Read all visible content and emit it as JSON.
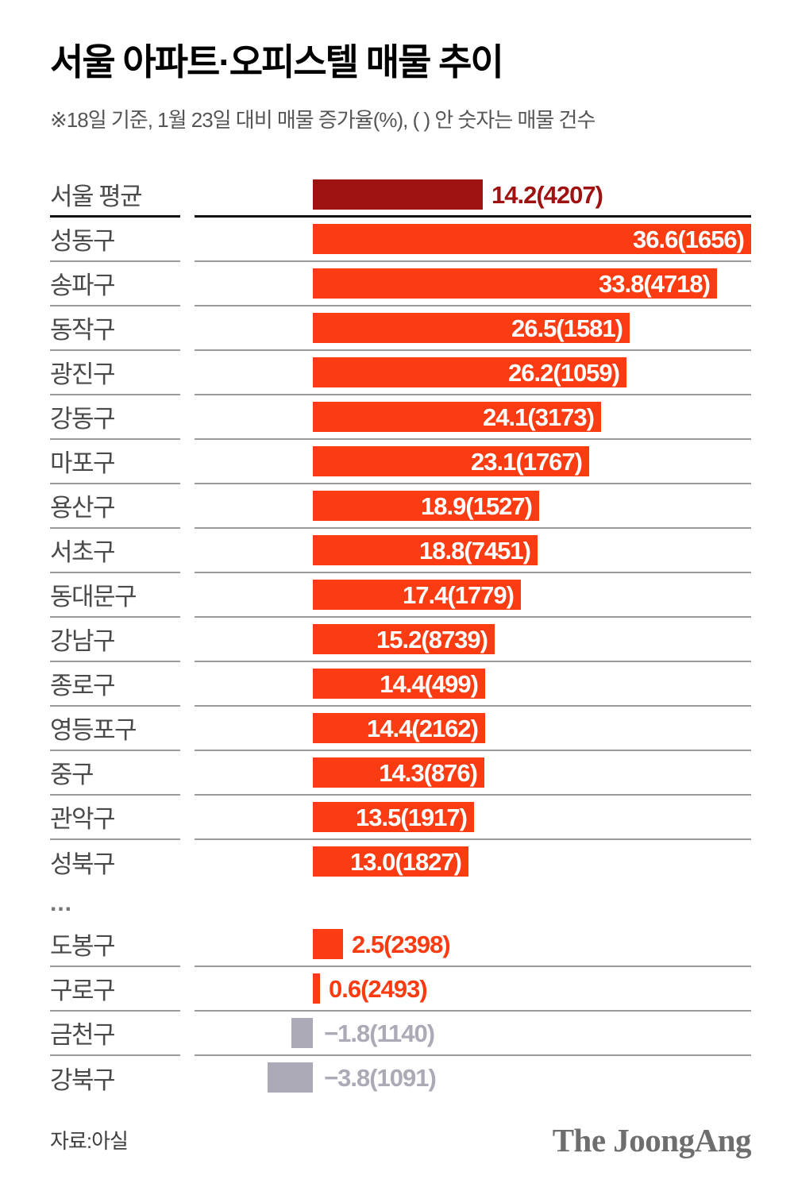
{
  "header": {
    "title": "서울 아파트·오피스텔 매물 추이",
    "subtitle": "※18일 기준, 1월 23일 대비 매물 증가율(%), ( ) 안 숫자는 매물 건수"
  },
  "chart_data": {
    "type": "bar",
    "orientation": "horizontal",
    "value_unit": "%",
    "count_unit": "매물 건수",
    "colors": {
      "average_bar": "#9e1212",
      "positive_bar": "#fb3b12",
      "negative_bar": "#abaab6"
    },
    "xlim": [
      -10,
      37
    ],
    "rows": [
      {
        "label": "서울 평균",
        "value": 14.2,
        "count": 4207,
        "display": "14.2(4207)",
        "style": "average",
        "value_inside": false,
        "separator": "black"
      },
      {
        "label": "성동구",
        "value": 36.6,
        "count": 1656,
        "display": "36.6(1656)",
        "style": "positive",
        "value_inside": true,
        "separator": "gray"
      },
      {
        "label": "송파구",
        "value": 33.8,
        "count": 4718,
        "display": "33.8(4718)",
        "style": "positive",
        "value_inside": true,
        "separator": "gray"
      },
      {
        "label": "동작구",
        "value": 26.5,
        "count": 1581,
        "display": "26.5(1581)",
        "style": "positive",
        "value_inside": true,
        "separator": "gray"
      },
      {
        "label": "광진구",
        "value": 26.2,
        "count": 1059,
        "display": "26.2(1059)",
        "style": "positive",
        "value_inside": true,
        "separator": "gray"
      },
      {
        "label": "강동구",
        "value": 24.1,
        "count": 3173,
        "display": "24.1(3173)",
        "style": "positive",
        "value_inside": true,
        "separator": "gray"
      },
      {
        "label": "마포구",
        "value": 23.1,
        "count": 1767,
        "display": "23.1(1767)",
        "style": "positive",
        "value_inside": true,
        "separator": "gray"
      },
      {
        "label": "용산구",
        "value": 18.9,
        "count": 1527,
        "display": "18.9(1527)",
        "style": "positive",
        "value_inside": true,
        "separator": "gray"
      },
      {
        "label": "서초구",
        "value": 18.8,
        "count": 7451,
        "display": "18.8(7451)",
        "style": "positive",
        "value_inside": true,
        "separator": "gray"
      },
      {
        "label": "동대문구",
        "value": 17.4,
        "count": 1779,
        "display": "17.4(1779)",
        "style": "positive",
        "value_inside": true,
        "separator": "gray"
      },
      {
        "label": "강남구",
        "value": 15.2,
        "count": 8739,
        "display": "15.2(8739)",
        "style": "positive",
        "value_inside": true,
        "separator": "gray"
      },
      {
        "label": "종로구",
        "value": 14.4,
        "count": 499,
        "display": "14.4(499)",
        "style": "positive",
        "value_inside": true,
        "separator": "gray"
      },
      {
        "label": "영등포구",
        "value": 14.4,
        "count": 2162,
        "display": "14.4(2162)",
        "style": "positive",
        "value_inside": true,
        "separator": "gray"
      },
      {
        "label": "중구",
        "value": 14.3,
        "count": 876,
        "display": "14.3(876)",
        "style": "positive",
        "value_inside": true,
        "separator": "gray"
      },
      {
        "label": "관악구",
        "value": 13.5,
        "count": 1917,
        "display": "13.5(1917)",
        "style": "positive",
        "value_inside": true,
        "separator": "gray"
      },
      {
        "label": "성북구",
        "value": 13.0,
        "count": 1827,
        "display": "13.0(1827)",
        "style": "positive",
        "value_inside": true,
        "separator": "none"
      },
      {
        "type": "ellipsis",
        "label": "..."
      },
      {
        "label": "도봉구",
        "value": 2.5,
        "count": 2398,
        "display": "2.5(2398)",
        "style": "positive",
        "value_inside": false,
        "separator": "gray"
      },
      {
        "label": "구로구",
        "value": 0.6,
        "count": 2493,
        "display": "0.6(2493)",
        "style": "positive",
        "value_inside": false,
        "separator": "gray"
      },
      {
        "label": "금천구",
        "value": -1.8,
        "count": 1140,
        "display": "−1.8(1140)",
        "style": "negative",
        "value_inside": false,
        "separator": "gray"
      },
      {
        "label": "강북구",
        "value": -3.8,
        "count": 1091,
        "display": "−3.8(1091)",
        "style": "negative",
        "value_inside": false,
        "separator": "none"
      }
    ]
  },
  "footer": {
    "source": "자료:아실",
    "logo": "The JoongAng"
  }
}
